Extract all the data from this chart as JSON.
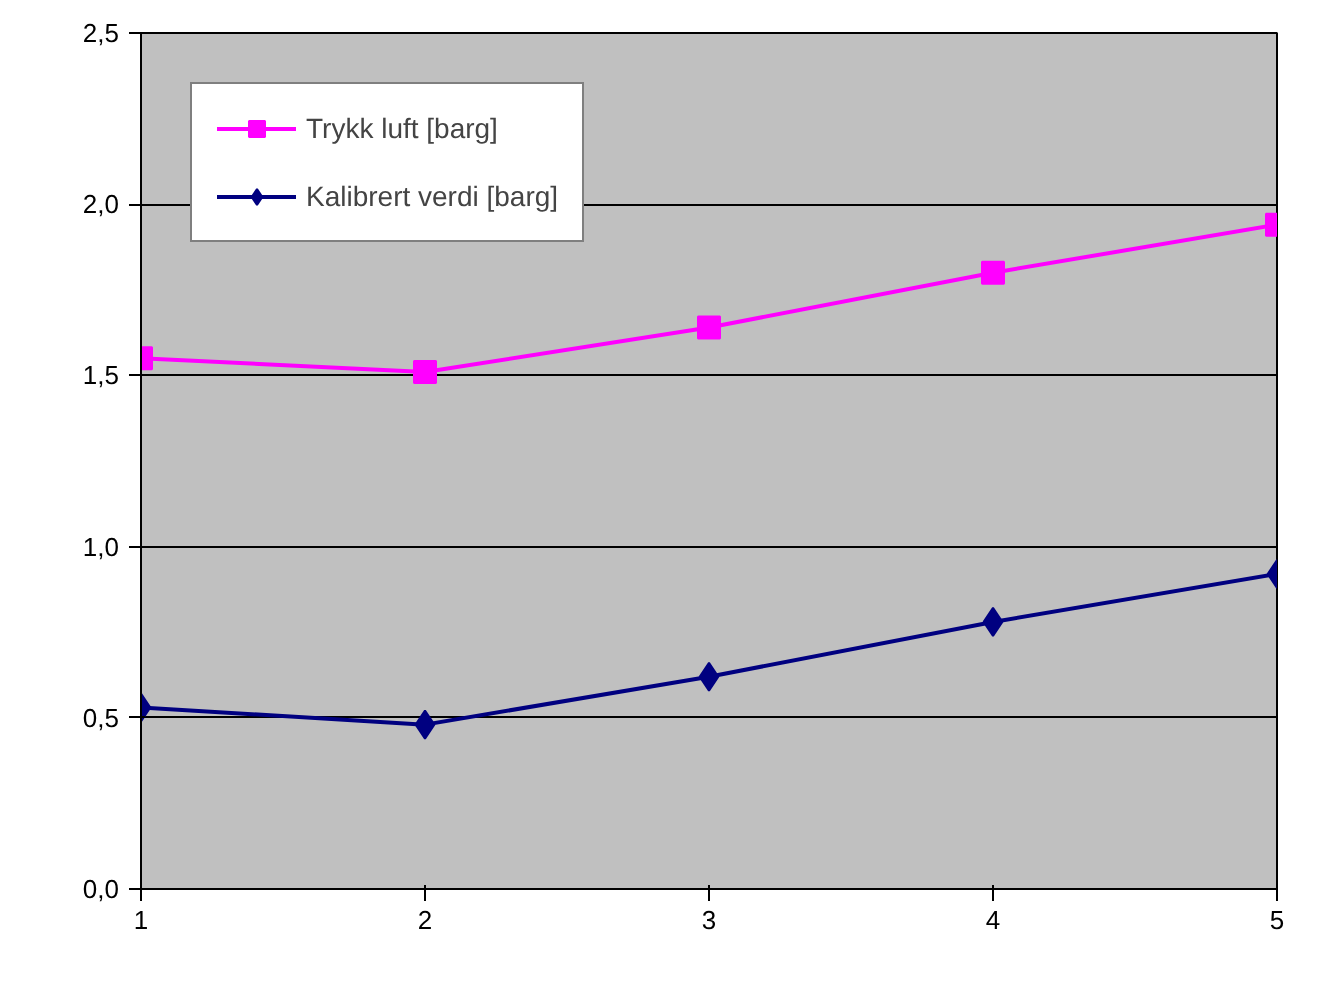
{
  "chart_data": {
    "type": "line",
    "x": [
      1,
      2,
      3,
      4,
      5
    ],
    "series": [
      {
        "name": "Trykk luft [barg]",
        "color": "#ff00ff",
        "marker": "square",
        "values": [
          1.55,
          1.51,
          1.64,
          1.8,
          1.94
        ]
      },
      {
        "name": "Kalibrert verdi [barg]",
        "color": "#000080",
        "marker": "diamond",
        "values": [
          0.53,
          0.48,
          0.62,
          0.78,
          0.92
        ]
      }
    ],
    "xlim": [
      1,
      5
    ],
    "xticks": [
      1,
      2,
      3,
      4,
      5
    ],
    "ylim": [
      0,
      2.5
    ],
    "yticks": [
      {
        "value": 0,
        "label": "0,0"
      },
      {
        "value": 0.5,
        "label": "0,5"
      },
      {
        "value": 1,
        "label": "1,0"
      },
      {
        "value": 1.5,
        "label": "1,5"
      },
      {
        "value": 2,
        "label": "2,0"
      },
      {
        "value": 2.5,
        "label": "2,5"
      }
    ],
    "grid": "y",
    "legend": "top left",
    "line_style": "solid"
  }
}
